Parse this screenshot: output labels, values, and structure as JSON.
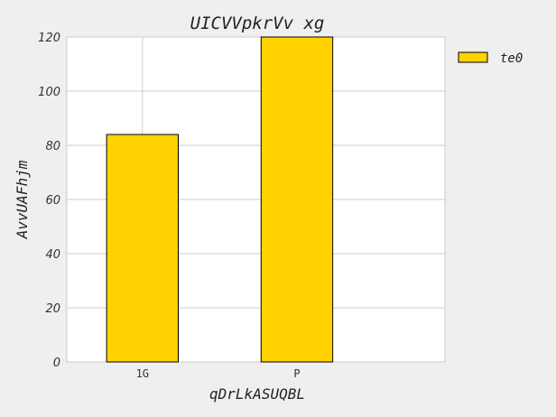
{
  "chart_data": {
    "type": "bar",
    "title": "UICVVpkrVv xg",
    "xlabel": "qDrLkASUQBL",
    "ylabel": "AvvUAFhjm",
    "categories": [
      "1G",
      "P"
    ],
    "series": [
      {
        "name": "te0",
        "values": [
          84,
          120
        ],
        "color": "#ffd200"
      }
    ],
    "ylim": [
      0,
      120
    ],
    "yticks": [
      0,
      20,
      40,
      60,
      80,
      100,
      120
    ],
    "grid": true,
    "legend_position": "outside-right-top"
  }
}
